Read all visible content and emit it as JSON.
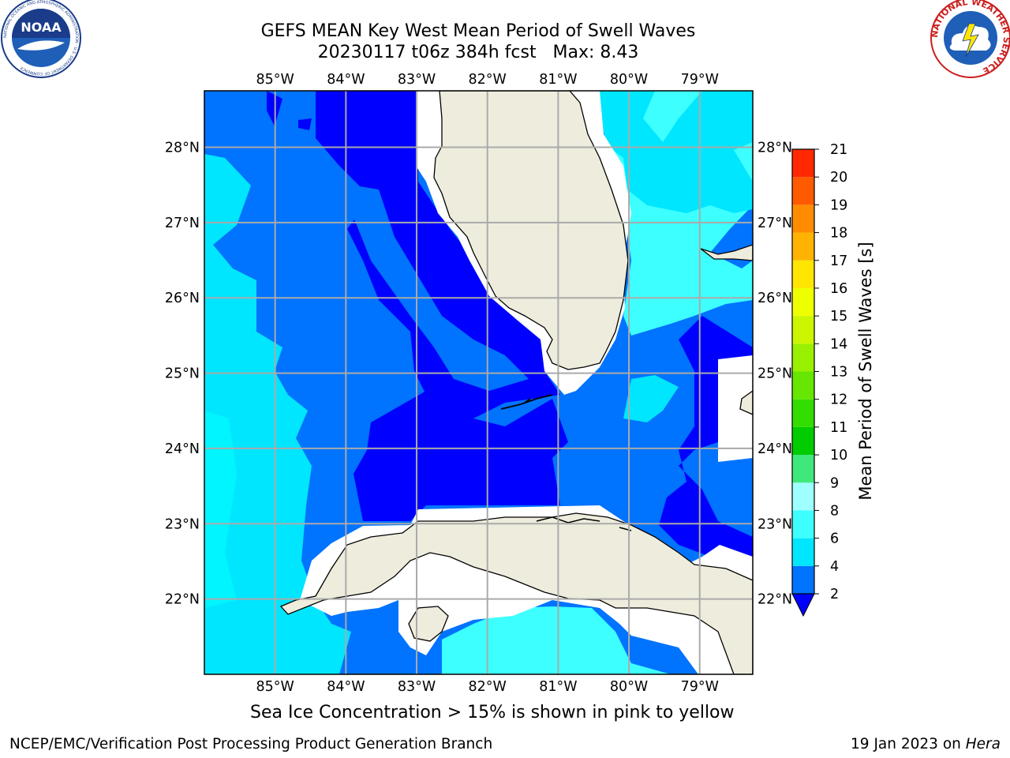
{
  "header": {
    "title_line1": "GEFS MEAN Key West Mean Period of Swell Waves",
    "title_line2": "20230117 t06z 384h fcst   Max: 8.43"
  },
  "logos": {
    "left": "NOAA",
    "left_ring_text": "NATIONAL OCEANIC AND ATMOSPHERIC ADMINISTRATION · U.S. DEPARTMENT OF COMMERCE",
    "right_ring_text": "NATIONAL WEATHER SERVICE"
  },
  "map": {
    "lon_labels": [
      "85°W",
      "84°W",
      "83°W",
      "82°W",
      "81°W",
      "80°W",
      "79°W"
    ],
    "lat_labels": [
      "28°N",
      "27°N",
      "26°N",
      "25°N",
      "24°N",
      "23°N",
      "22°N"
    ],
    "extent": {
      "lon_min": -86.0,
      "lon_max": -78.25,
      "lat_min": 21.0,
      "lat_max": 28.75
    },
    "grid": true
  },
  "colorbar": {
    "label": "Mean Period of Swell Waves [s]",
    "ticks": [
      "2",
      "4",
      "6",
      "8",
      "9",
      "10",
      "11",
      "12",
      "13",
      "14",
      "15",
      "16",
      "17",
      "18",
      "19",
      "20",
      "21"
    ],
    "levels": [
      2,
      4,
      6,
      8,
      9,
      10,
      11,
      12,
      13,
      14,
      15,
      16,
      17,
      18,
      19,
      20,
      21
    ],
    "colors": [
      "#0073ff",
      "#00e6ff",
      "#3dffff",
      "#9effff",
      "#3fe87a",
      "#00cc00",
      "#33dd00",
      "#66e600",
      "#99f000",
      "#ccf500",
      "#eeff00",
      "#ffe600",
      "#ffb300",
      "#ff8c00",
      "#ff5a00",
      "#ff2800"
    ],
    "extend_min_color": "#0000ff"
  },
  "legend_text": {
    "subcaption": "Sea Ice Concentration > 15% is shown in pink to yellow"
  },
  "footer": {
    "left": "NCEP/EMC/Verification Post Processing Product Generation Branch",
    "date": "19 Jan 2023 on ",
    "machine": "Hera"
  },
  "colors": {
    "deep_blue": "#0000ff",
    "mid_blue": "#0073ff",
    "cyan": "#00e6ff",
    "light_cyan": "#3dffff",
    "land": "#eeecdc",
    "grid": "#aaaaaa"
  }
}
